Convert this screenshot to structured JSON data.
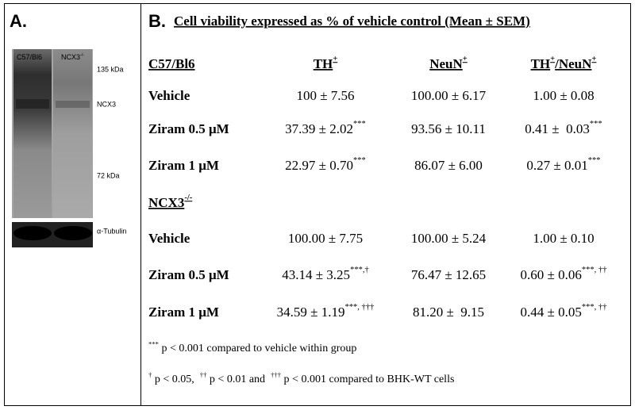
{
  "panel_a": {
    "label": "A.",
    "lanes": [
      [
        {
          "text": "C57/Bl6"
        }
      ],
      [
        {
          "text": "NCX3"
        },
        {
          "sup": "-/-"
        }
      ]
    ],
    "markers": [
      "135 kDa",
      "NCX3",
      "72 kDa",
      "α-Tubulin"
    ]
  },
  "panel_b": {
    "label": "B.",
    "title": "Cell viability expressed as % of vehicle control (Mean ± SEM)",
    "groups": [
      {
        "header": [
          [
            {
              "text": "C57/Bl6"
            }
          ],
          [
            {
              "text": "TH"
            },
            {
              "sup": "+"
            }
          ],
          [
            {
              "text": "NeuN"
            },
            {
              "sup": "+"
            }
          ],
          [
            {
              "text": "TH"
            },
            {
              "sup": "+"
            },
            {
              "text": "/NeuN"
            },
            {
              "sup": "+"
            }
          ]
        ],
        "rows": [
          [
            [
              {
                "text": "Vehicle"
              }
            ],
            [
              {
                "text": "100 ± 7.56"
              }
            ],
            [
              {
                "text": "100.00 ± 6.17"
              }
            ],
            [
              {
                "text": "1.00 ± 0.08"
              }
            ]
          ],
          [
            [
              {
                "text": "Ziram 0.5 μM"
              }
            ],
            [
              {
                "text": "37.39 ± 2.02"
              },
              {
                "sup": "***"
              }
            ],
            [
              {
                "text": "93.56 ± 10.11"
              }
            ],
            [
              {
                "text": "0.41 ±  0.03"
              },
              {
                "sup": "***"
              }
            ]
          ],
          [
            [
              {
                "text": "Ziram 1 μM"
              }
            ],
            [
              {
                "text": "22.97 ± 0.70"
              },
              {
                "sup": "***"
              }
            ],
            [
              {
                "text": "86.07 ± 6.00"
              }
            ],
            [
              {
                "text": "0.27 ± 0.01"
              },
              {
                "sup": "***"
              }
            ]
          ]
        ]
      },
      {
        "header": [
          [
            {
              "text": "NCX3"
            },
            {
              "sup": "-/-"
            }
          ]
        ],
        "rows": [
          [
            [
              {
                "text": "Vehicle"
              }
            ],
            [
              {
                "text": "100.00 ± 7.75"
              }
            ],
            [
              {
                "text": "100.00 ± 5.24"
              }
            ],
            [
              {
                "text": "1.00 ± 0.10"
              }
            ]
          ],
          [
            [
              {
                "text": "Ziram 0.5 μM"
              }
            ],
            [
              {
                "text": "43.14 ± 3.25"
              },
              {
                "sup": "***,†"
              }
            ],
            [
              {
                "text": "76.47 ± 12.65"
              }
            ],
            [
              {
                "text": "0.60 ± 0.06"
              },
              {
                "sup": "***, ††"
              }
            ]
          ],
          [
            [
              {
                "text": "Ziram 1 μM"
              }
            ],
            [
              {
                "text": "34.59 ± 1.19"
              },
              {
                "sup": "***, †††"
              }
            ],
            [
              {
                "text": "81.20 ±  9.15"
              }
            ],
            [
              {
                "text": "0.44 ± 0.05"
              },
              {
                "sup": "***, ††"
              }
            ]
          ]
        ]
      }
    ],
    "footnotes": [
      [
        {
          "sup": "***"
        },
        {
          "text": " p < 0.001 compared to vehicle within group"
        }
      ],
      [
        {
          "sup": "†"
        },
        {
          "text": " p < 0.05,  "
        },
        {
          "sup": "††"
        },
        {
          "text": " p < 0.01 and  "
        },
        {
          "sup": "†††"
        },
        {
          "text": " p < 0.001 compared to BHK-WT cells"
        }
      ]
    ]
  }
}
